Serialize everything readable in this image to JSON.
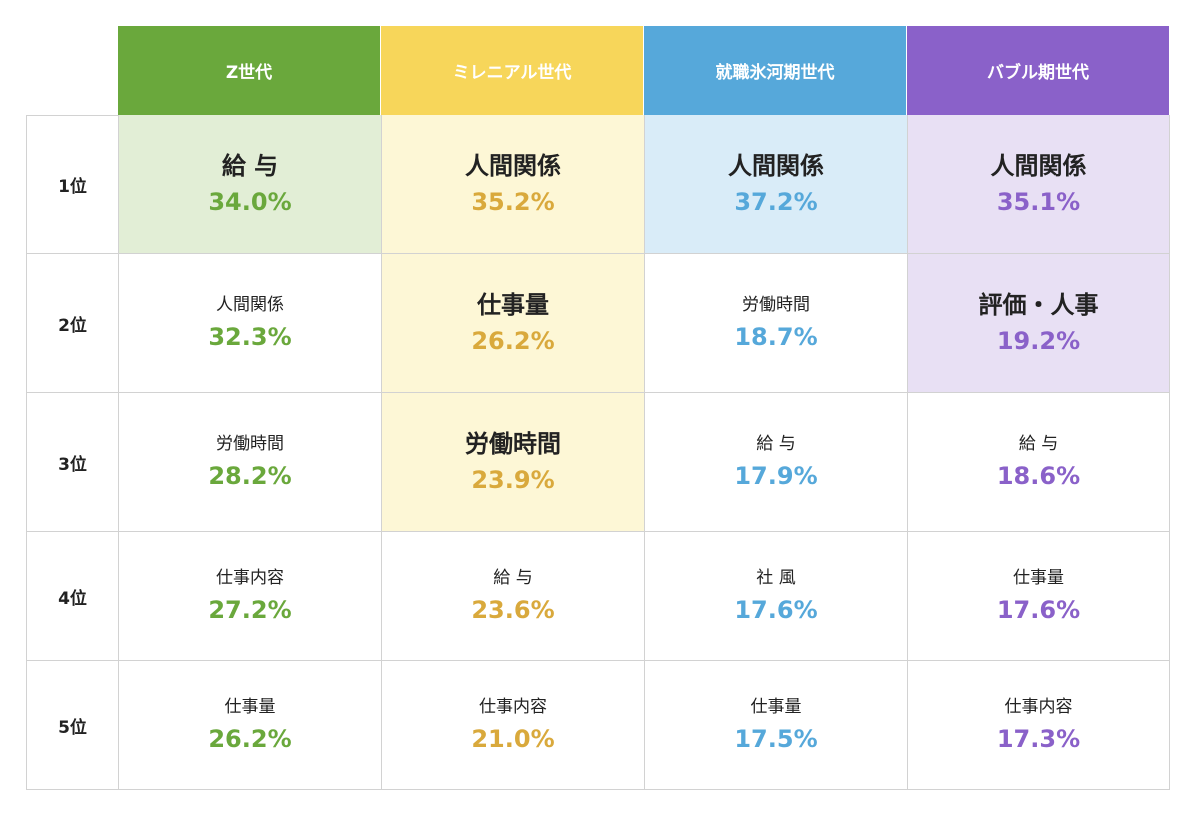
{
  "chart_data": {
    "type": "table",
    "columns": [
      {
        "name": "Z世代",
        "color": "#6aa83c",
        "highlight": "#e2eed6",
        "value_color": "#6aa83c"
      },
      {
        "name": "ミレニアル世代",
        "color": "#f7d65a",
        "highlight": "#fdf7d6",
        "value_color": "#d9a93c"
      },
      {
        "name": "就職氷河期世代",
        "color": "#56a8da",
        "highlight": "#d9ecf8",
        "value_color": "#56a8da"
      },
      {
        "name": "バブル期世代",
        "color": "#8a61c9",
        "highlight": "#e8e0f4",
        "value_color": "#8a61c9"
      }
    ],
    "ranks": [
      "1位",
      "2位",
      "3位",
      "4位",
      "5位"
    ],
    "cells": [
      [
        {
          "label": "給 与",
          "value": "34.0%",
          "pct": 34.0,
          "highlight": true
        },
        {
          "label": "人間関係",
          "value": "35.2%",
          "pct": 35.2,
          "highlight": true
        },
        {
          "label": "人間関係",
          "value": "37.2%",
          "pct": 37.2,
          "highlight": true
        },
        {
          "label": "人間関係",
          "value": "35.1%",
          "pct": 35.1,
          "highlight": true
        }
      ],
      [
        {
          "label": "人間関係",
          "value": "32.3%",
          "pct": 32.3,
          "highlight": false
        },
        {
          "label": "仕事量",
          "value": "26.2%",
          "pct": 26.2,
          "highlight": true
        },
        {
          "label": "労働時間",
          "value": "18.7%",
          "pct": 18.7,
          "highlight": false
        },
        {
          "label": "評価・人事",
          "value": "19.2%",
          "pct": 19.2,
          "highlight": true
        }
      ],
      [
        {
          "label": "労働時間",
          "value": "28.2%",
          "pct": 28.2,
          "highlight": false
        },
        {
          "label": "労働時間",
          "value": "23.9%",
          "pct": 23.9,
          "highlight": true
        },
        {
          "label": "給 与",
          "value": "17.9%",
          "pct": 17.9,
          "highlight": false
        },
        {
          "label": "給 与",
          "value": "18.6%",
          "pct": 18.6,
          "highlight": false
        }
      ],
      [
        {
          "label": "仕事内容",
          "value": "27.2%",
          "pct": 27.2,
          "highlight": false
        },
        {
          "label": "給 与",
          "value": "23.6%",
          "pct": 23.6,
          "highlight": false
        },
        {
          "label": "社 風",
          "value": "17.6%",
          "pct": 17.6,
          "highlight": false
        },
        {
          "label": "仕事量",
          "value": "17.6%",
          "pct": 17.6,
          "highlight": false
        }
      ],
      [
        {
          "label": "仕事量",
          "value": "26.2%",
          "pct": 26.2,
          "highlight": false
        },
        {
          "label": "仕事内容",
          "value": "21.0%",
          "pct": 21.0,
          "highlight": false
        },
        {
          "label": "仕事量",
          "value": "17.5%",
          "pct": 17.5,
          "highlight": false
        },
        {
          "label": "仕事内容",
          "value": "17.3%",
          "pct": 17.3,
          "highlight": false
        }
      ]
    ],
    "grid": true
  }
}
